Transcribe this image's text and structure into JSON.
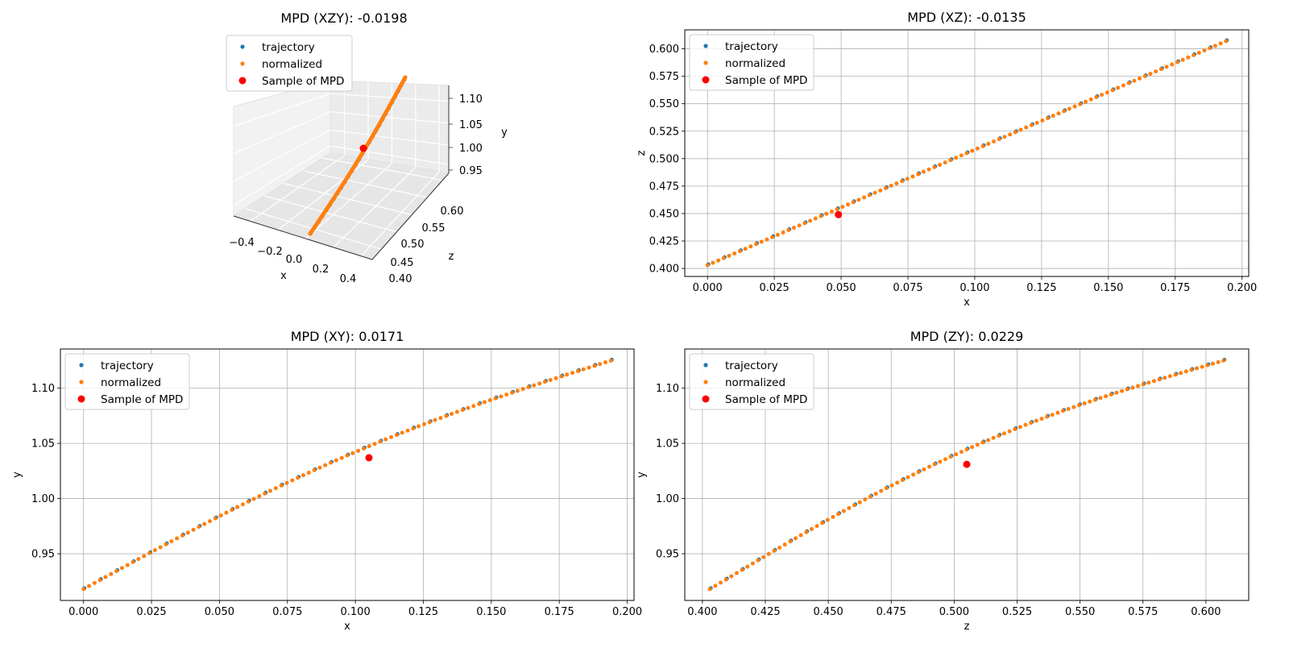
{
  "colors": {
    "trajectory": "#1f77b4",
    "normalized": "#ff7f0e",
    "sample": "#ff0000",
    "grid": "#b0b0b0"
  },
  "chart_data": [
    {
      "id": "xzy",
      "type": "scatter3d",
      "title": "MPD (XZY): -0.0198",
      "xlabel": "x",
      "ylabel": "z",
      "zlabel": "y",
      "x_ticks": [
        "−0.4",
        "−0.2",
        "0.0",
        "0.2",
        "0.4"
      ],
      "y_ticks": [
        "0.40",
        "0.45",
        "0.50",
        "0.55",
        "0.60"
      ],
      "z_ticks": [
        "0.95",
        "1.00",
        "1.05",
        "1.10"
      ],
      "legend": [
        "trajectory",
        "normalized",
        "Sample of MPD"
      ],
      "legend_loc": "upper-left",
      "grid": true,
      "line": {
        "x_start": 0.0,
        "x_end": 0.195,
        "z_start": 0.403,
        "z_end": 0.607,
        "y_start": 0.918,
        "y_end": 1.125
      },
      "sample": {
        "x": 0.097,
        "z": 0.505,
        "y": 1.025
      }
    },
    {
      "id": "xz",
      "type": "scatter",
      "title": "MPD (XZ): -0.0135",
      "xlabel": "x",
      "ylabel": "z",
      "xlim": [
        -0.0085,
        0.2025
      ],
      "ylim": [
        0.3927,
        0.6173
      ],
      "x_ticks": [
        0.0,
        0.025,
        0.05,
        0.075,
        0.1,
        0.125,
        0.15,
        0.175,
        0.2
      ],
      "x_tick_labels": [
        "0.000",
        "0.025",
        "0.050",
        "0.075",
        "0.100",
        "0.125",
        "0.150",
        "0.175",
        "0.200"
      ],
      "y_ticks": [
        0.4,
        0.425,
        0.45,
        0.475,
        0.5,
        0.525,
        0.55,
        0.575,
        0.6
      ],
      "y_tick_labels": [
        "0.400",
        "0.425",
        "0.450",
        "0.475",
        "0.500",
        "0.525",
        "0.550",
        "0.575",
        "0.600"
      ],
      "legend": [
        "trajectory",
        "normalized",
        "Sample of MPD"
      ],
      "legend_loc": "upper-left",
      "grid": true,
      "line": {
        "x_start": 0.0,
        "x_end": 0.194,
        "y_start": 0.403,
        "y_end": 0.607,
        "bow": 0.0
      },
      "sample": {
        "x": 0.049,
        "y": 0.449
      }
    },
    {
      "id": "xy",
      "type": "scatter",
      "title": "MPD (XY): 0.0171",
      "xlabel": "x",
      "ylabel": "y",
      "xlim": [
        -0.0085,
        0.2025
      ],
      "ylim": [
        0.9077,
        1.1355
      ],
      "x_ticks": [
        0.0,
        0.025,
        0.05,
        0.075,
        0.1,
        0.125,
        0.15,
        0.175,
        0.2
      ],
      "x_tick_labels": [
        "0.000",
        "0.025",
        "0.050",
        "0.075",
        "0.100",
        "0.125",
        "0.150",
        "0.175",
        "0.200"
      ],
      "y_ticks": [
        0.95,
        1.0,
        1.05,
        1.1
      ],
      "y_tick_labels": [
        "0.95",
        "1.00",
        "1.05",
        "1.10"
      ],
      "legend": [
        "trajectory",
        "normalized",
        "Sample of MPD"
      ],
      "legend_loc": "upper-left",
      "grid": true,
      "line": {
        "x_start": 0.0,
        "x_end": 0.194,
        "y_start": 0.918,
        "y_end": 1.125,
        "bow": 0.0175
      },
      "sample": {
        "x": 0.105,
        "y": 1.037
      }
    },
    {
      "id": "zy",
      "type": "scatter",
      "title": "MPD (ZY): 0.0229",
      "xlabel": "z",
      "ylabel": "y",
      "xlim": [
        0.393,
        0.617
      ],
      "ylim": [
        0.9077,
        1.1355
      ],
      "x_ticks": [
        0.4,
        0.425,
        0.45,
        0.475,
        0.5,
        0.525,
        0.55,
        0.575,
        0.6
      ],
      "x_tick_labels": [
        "0.400",
        "0.425",
        "0.450",
        "0.475",
        "0.500",
        "0.525",
        "0.550",
        "0.575",
        "0.600"
      ],
      "y_ticks": [
        0.95,
        1.0,
        1.05,
        1.1
      ],
      "y_tick_labels": [
        "0.95",
        "1.00",
        "1.05",
        "1.10"
      ],
      "legend": [
        "trajectory",
        "normalized",
        "Sample of MPD"
      ],
      "legend_loc": "upper-left",
      "grid": true,
      "line": {
        "x_start": 0.403,
        "x_end": 0.607,
        "y_start": 0.918,
        "y_end": 1.125,
        "bow": 0.023
      },
      "sample": {
        "x": 0.505,
        "y": 1.031
      }
    }
  ]
}
